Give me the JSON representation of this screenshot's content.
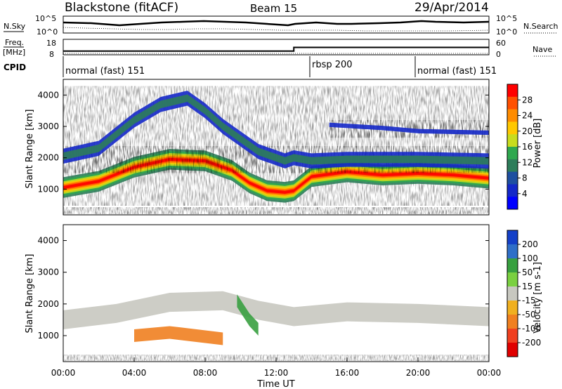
{
  "header": {
    "title": "Blackstone (fitACF)",
    "beam": "Beam 15",
    "date": "29/Apr/2014"
  },
  "summary": {
    "nsky_label": "N.Sky",
    "nsearch_label": "N.Search",
    "freq_label_line1": "Freq.",
    "freq_label_line2": "[MHz]",
    "nave_label": "Nave",
    "cpid_label": "CPID",
    "nsky_ticks": [
      "10^5",
      "10^0"
    ],
    "nsearch_ticks": [
      "10^5",
      "10^0"
    ],
    "freq_ticks": [
      "18",
      "8"
    ],
    "nave_ticks": [
      "60",
      "0"
    ],
    "cpid_segments": [
      {
        "label": "normal (fast) 151",
        "start_hr": 0,
        "end_hr": 14
      },
      {
        "label": "rbsp 200",
        "start_hr": 14,
        "end_hr": 21
      },
      {
        "label": "normal (fast) 151",
        "start_hr": 21,
        "end_hr": 24
      }
    ],
    "freq_step": {
      "before_mhz": 10.4,
      "after_mhz": 12.8,
      "switch_hr": 13.0
    }
  },
  "colorbars": {
    "power": {
      "label": "Power [dB]",
      "ticks": [
        "28",
        "24",
        "20",
        "16",
        "12",
        "8",
        "4"
      ],
      "colors": [
        "#ff0000",
        "#ff5000",
        "#ff8c00",
        "#ffc800",
        "#c8dc1e",
        "#2fa84f",
        "#2d7d5a",
        "#1e4fa0",
        "#1428c8",
        "#0000ff"
      ]
    },
    "velocity": {
      "label": "Velocity [m s-1]",
      "ticks": [
        "200",
        "100",
        "50",
        "15",
        "-15",
        "-50",
        "-100",
        "-200"
      ],
      "colors": [
        "#1440c8",
        "#2f6fc8",
        "#38a040",
        "#7ad040",
        "#c8c8c0",
        "#f0b020",
        "#f08020",
        "#f04020",
        "#e00000"
      ]
    }
  },
  "chart_data": [
    {
      "type": "heatmap",
      "title": "",
      "ylabel": "Slant Range [km]",
      "xlabel": "",
      "parameter": "Power",
      "units": "dB",
      "ylim": [
        180,
        4500
      ],
      "xlim_hr": [
        0,
        24
      ],
      "yticks": [
        1000,
        2000,
        3000,
        4000
      ],
      "ytick_labels": [
        "1000",
        "2000",
        "3000",
        "4000"
      ],
      "bands": [
        {
          "name": "main",
          "points_hr_km": [
            [
              0,
              1050
            ],
            [
              2,
              1250
            ],
            [
              4,
              1700
            ],
            [
              6,
              1950
            ],
            [
              8,
              1900
            ],
            [
              9.5,
              1600
            ],
            [
              10.5,
              1200
            ],
            [
              11.5,
              950
            ],
            [
              12.5,
              900
            ],
            [
              13,
              950
            ],
            [
              14,
              1400
            ],
            [
              16,
              1550
            ],
            [
              18,
              1450
            ],
            [
              20,
              1500
            ],
            [
              22,
              1450
            ],
            [
              24,
              1350
            ]
          ],
          "peak_db": 26
        },
        {
          "name": "upper",
          "points_hr_km": [
            [
              0,
              2050
            ],
            [
              2,
              2300
            ],
            [
              4,
              3200
            ],
            [
              5.5,
              3700
            ],
            [
              7,
              3900
            ],
            [
              8,
              3500
            ],
            [
              9,
              3000
            ],
            [
              10,
              2600
            ],
            [
              11,
              2200
            ],
            [
              12.5,
              1900
            ],
            [
              13,
              2000
            ],
            [
              14,
              1900
            ],
            [
              16,
              1950
            ],
            [
              20,
              1950
            ],
            [
              24,
              1900
            ]
          ],
          "peak_db": 8
        },
        {
          "name": "far",
          "points_hr_km": [
            [
              15,
              3050
            ],
            [
              18,
              2950
            ],
            [
              20,
              2850
            ],
            [
              24,
              2800
            ]
          ],
          "peak_db": 6
        }
      ]
    },
    {
      "type": "heatmap",
      "title": "",
      "ylabel": "Slant Range [km]",
      "xlabel": "Time UT",
      "parameter": "Velocity",
      "units": "m s-1",
      "ylim": [
        180,
        4500
      ],
      "xlim_hr": [
        0,
        24
      ],
      "yticks": [
        1000,
        2000,
        3000,
        4000
      ],
      "ytick_labels": [
        "1000",
        "2000",
        "3000",
        "4000"
      ],
      "xticks_hr": [
        0,
        4,
        8,
        12,
        16,
        20,
        24
      ],
      "xtick_labels": [
        "00:00",
        "04:00",
        "08:00",
        "12:00",
        "16:00",
        "20:00",
        "00:00"
      ],
      "bands": [
        {
          "name": "ground_scatter",
          "points_hr_km": [
            [
              0,
              1500
            ],
            [
              3,
              1700
            ],
            [
              6,
              2050
            ],
            [
              9,
              2100
            ],
            [
              11,
              1800
            ],
            [
              13,
              1600
            ],
            [
              16,
              1750
            ],
            [
              20,
              1700
            ],
            [
              24,
              1600
            ]
          ],
          "velocity": 0
        },
        {
          "name": "westward_flow",
          "points_hr_km": [
            [
              4,
              1000
            ],
            [
              6,
              1100
            ],
            [
              9,
              900
            ]
          ],
          "velocity": -60
        },
        {
          "name": "eastward_patch",
          "points_hr_km": [
            [
              9.8,
              2100
            ],
            [
              10.5,
              1500
            ],
            [
              11,
              1200
            ]
          ],
          "velocity": 60
        }
      ]
    }
  ]
}
